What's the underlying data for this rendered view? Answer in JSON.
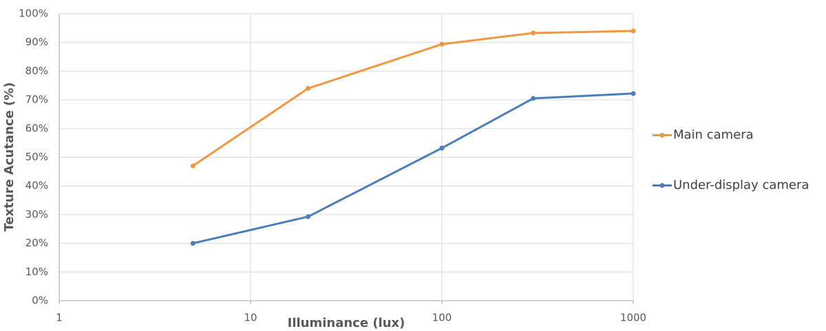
{
  "chart_data": {
    "type": "line",
    "x_label": "Illuminance (lux)",
    "y_label": "Texture Acutance (%)",
    "x": [
      5,
      20,
      100,
      300,
      1000
    ],
    "series": [
      {
        "name": "Main camera",
        "color": "#f4963f",
        "values": [
          47,
          74,
          89.4,
          93.3,
          94
        ]
      },
      {
        "name": "Under-display camera",
        "color": "#4a7ebb",
        "values": [
          20,
          29.3,
          53.2,
          70.5,
          72.2
        ]
      }
    ],
    "xlog": true,
    "xlim": [
      1,
      1000
    ],
    "xticks": [
      1,
      10,
      100,
      1000
    ],
    "ylim": [
      0,
      100
    ],
    "yticks": [
      {
        "value": 0,
        "label": "0%"
      },
      {
        "value": 10,
        "label": "10%"
      },
      {
        "value": 20,
        "label": "20%"
      },
      {
        "value": 30,
        "label": "30%"
      },
      {
        "value": 40,
        "label": "40%"
      },
      {
        "value": 50,
        "label": "50%"
      },
      {
        "value": 60,
        "label": "60%"
      },
      {
        "value": 70,
        "label": "70%"
      },
      {
        "value": 80,
        "label": "80%"
      },
      {
        "value": 90,
        "label": "90%"
      },
      {
        "value": 100,
        "label": "100%"
      }
    ],
    "grid": true,
    "legend": "right"
  }
}
